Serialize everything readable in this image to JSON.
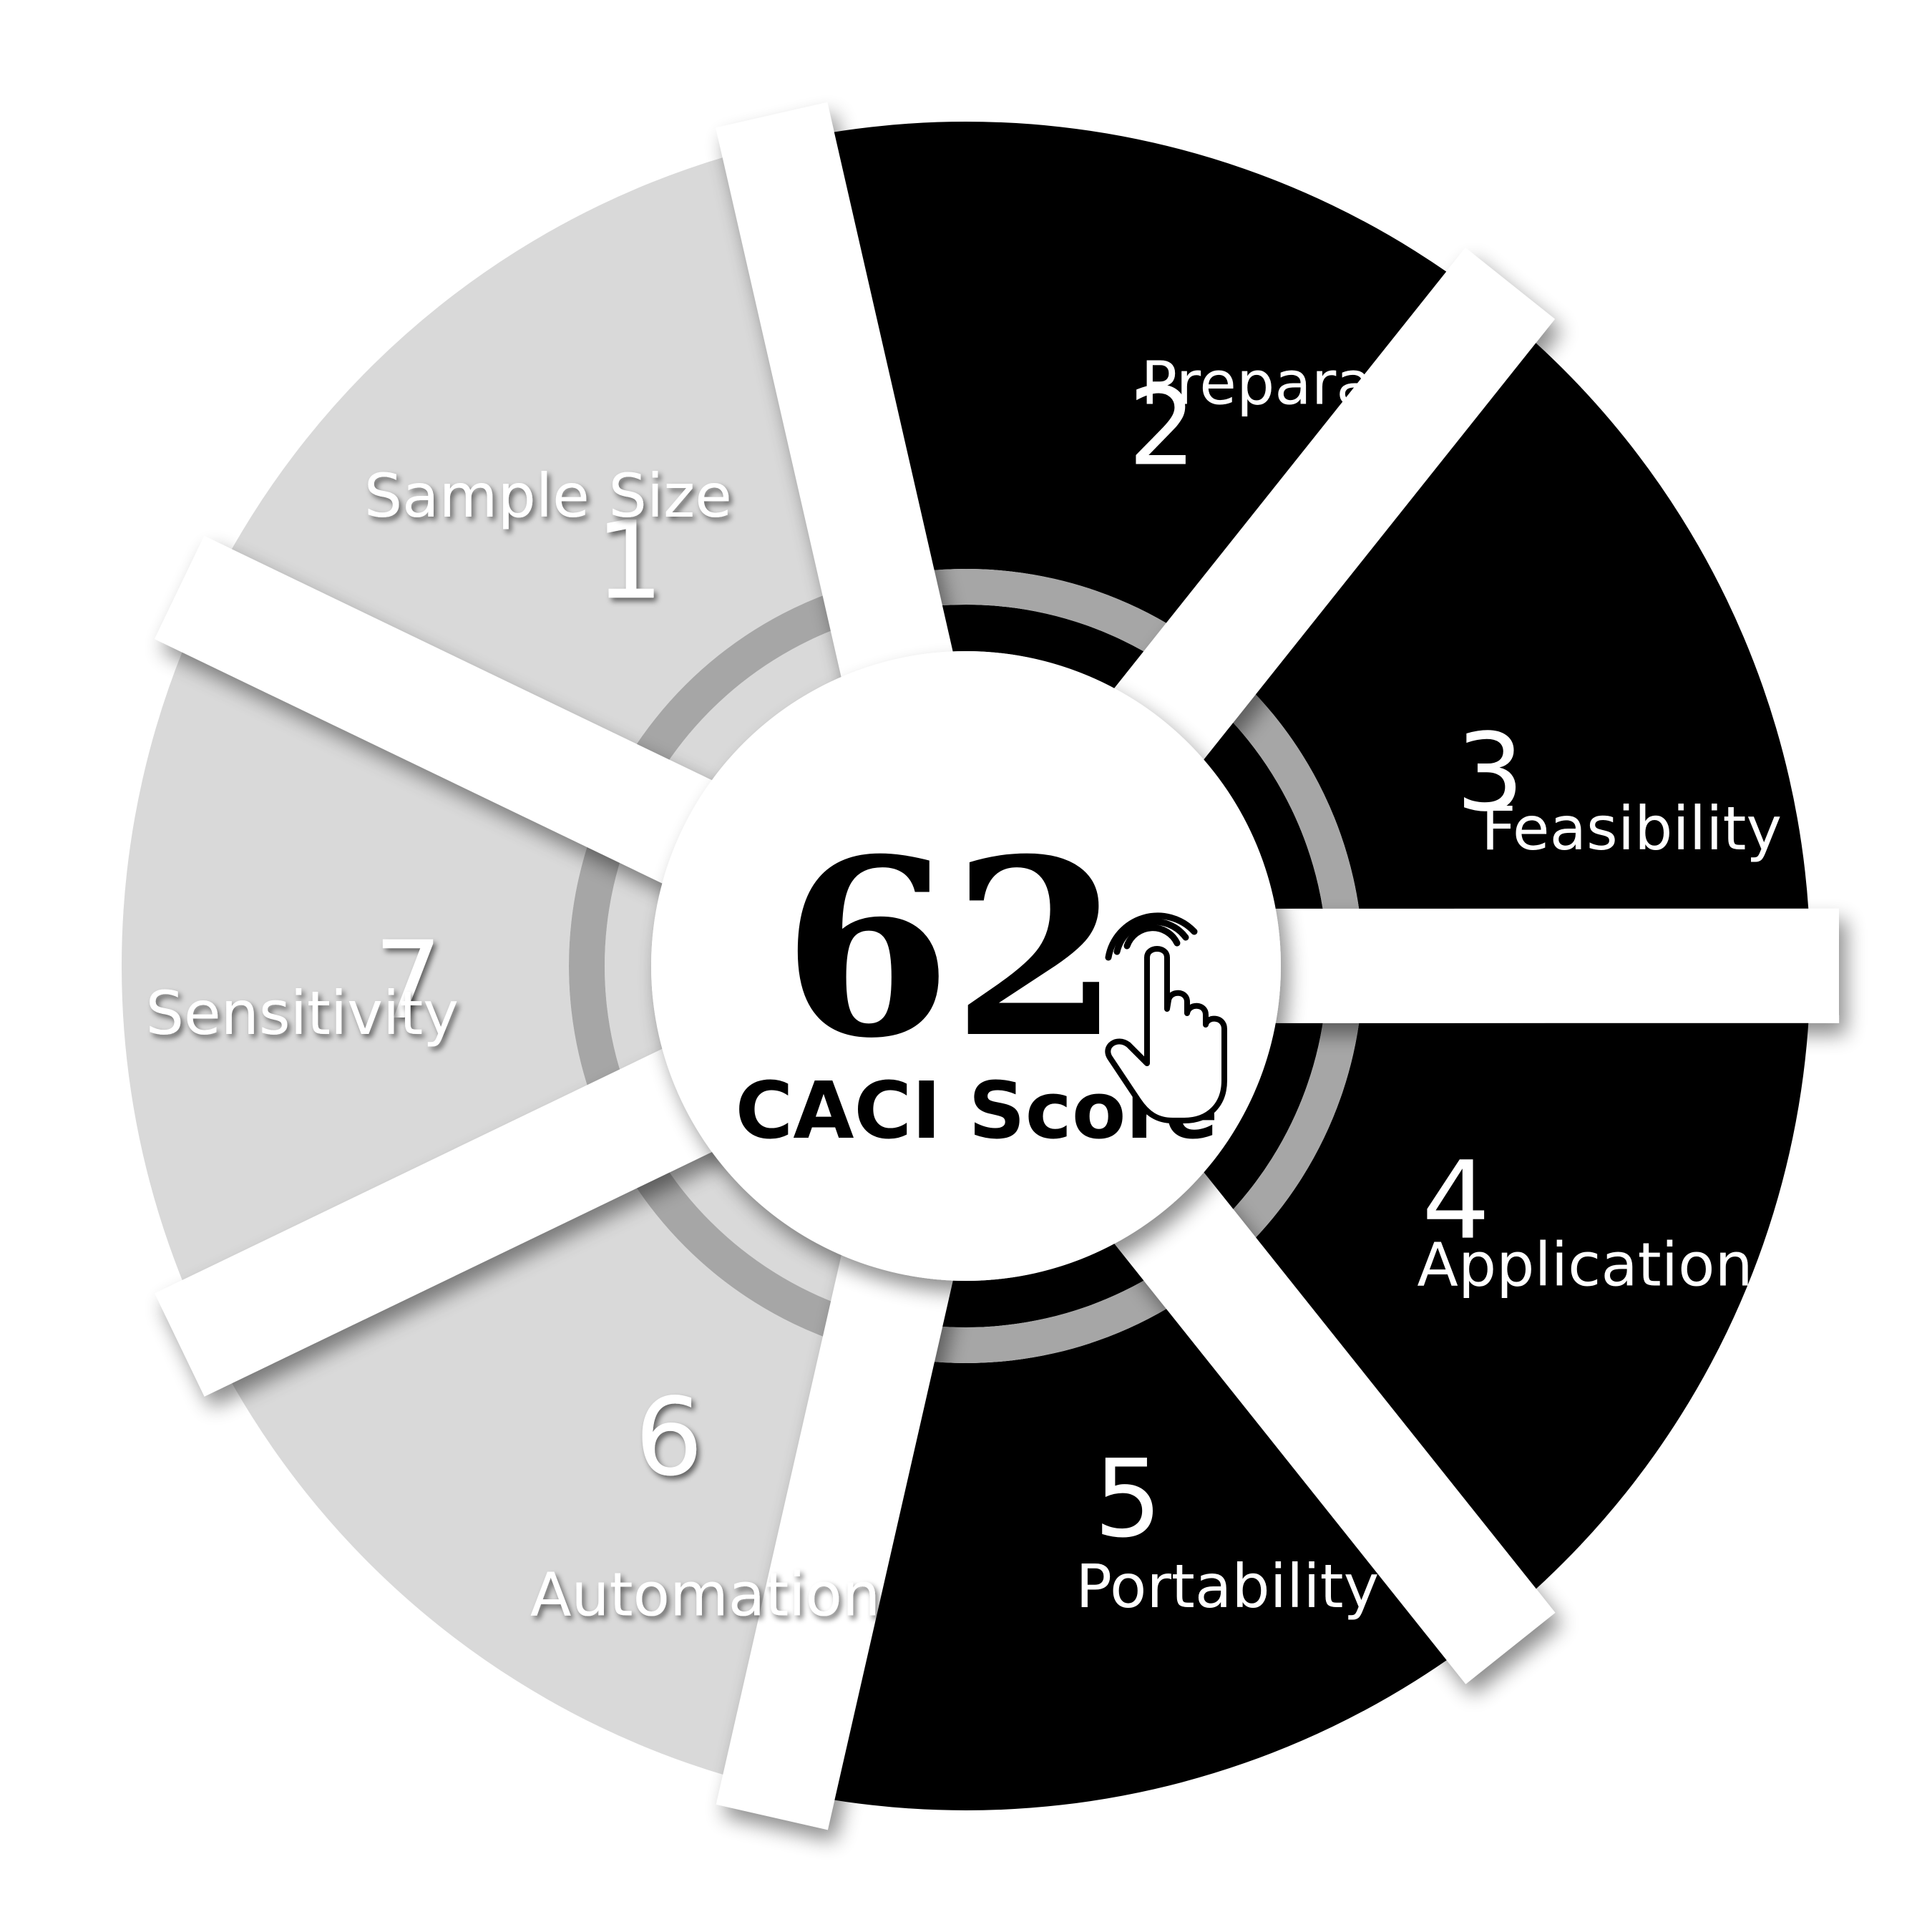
{
  "center": {
    "score": "62",
    "caption": "CACI Score",
    "icon": "hand-tap-icon"
  },
  "colors": {
    "dark_segment": "#000000",
    "light_segment": "#d9d9d9",
    "ring": "#a6a6a6",
    "center": "#ffffff",
    "light_text": "#ffffff",
    "dark_text": "#000000"
  },
  "segments": [
    {
      "number": "1",
      "label": "Sample Size",
      "state": "light"
    },
    {
      "number": "2",
      "label": "Preparation",
      "state": "dark"
    },
    {
      "number": "3",
      "label": "Feasibility",
      "state": "dark"
    },
    {
      "number": "4",
      "label": "Application",
      "state": "dark"
    },
    {
      "number": "5",
      "label": "Portability",
      "state": "dark"
    },
    {
      "number": "6",
      "label": "Automation",
      "state": "light"
    },
    {
      "number": "7",
      "label": "Sensitivity",
      "state": "light"
    }
  ]
}
